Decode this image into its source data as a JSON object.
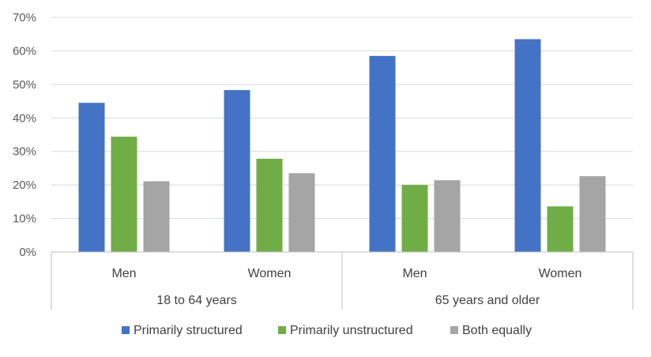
{
  "chart_data": {
    "type": "bar",
    "categories": [
      "Men",
      "Women",
      "Men",
      "Women"
    ],
    "groups": [
      {
        "label": "18 to 64 years",
        "span": 2
      },
      {
        "label": "65 years and older",
        "span": 2
      }
    ],
    "series": [
      {
        "name": "Primarily structured",
        "color": "#4472c4",
        "values": [
          44.5,
          48.3,
          58.5,
          63.5
        ]
      },
      {
        "name": "Primarily unstructured",
        "color": "#70ad47",
        "values": [
          34.4,
          27.8,
          20.0,
          13.6
        ]
      },
      {
        "name": "Both equally",
        "color": "#a5a5a5",
        "values": [
          21.1,
          23.5,
          21.4,
          22.6
        ]
      }
    ],
    "yticks": [
      "0%",
      "10%",
      "20%",
      "30%",
      "40%",
      "50%",
      "60%",
      "70%"
    ],
    "ylim": [
      0,
      70
    ],
    "grid": true,
    "legend": "bottom"
  }
}
